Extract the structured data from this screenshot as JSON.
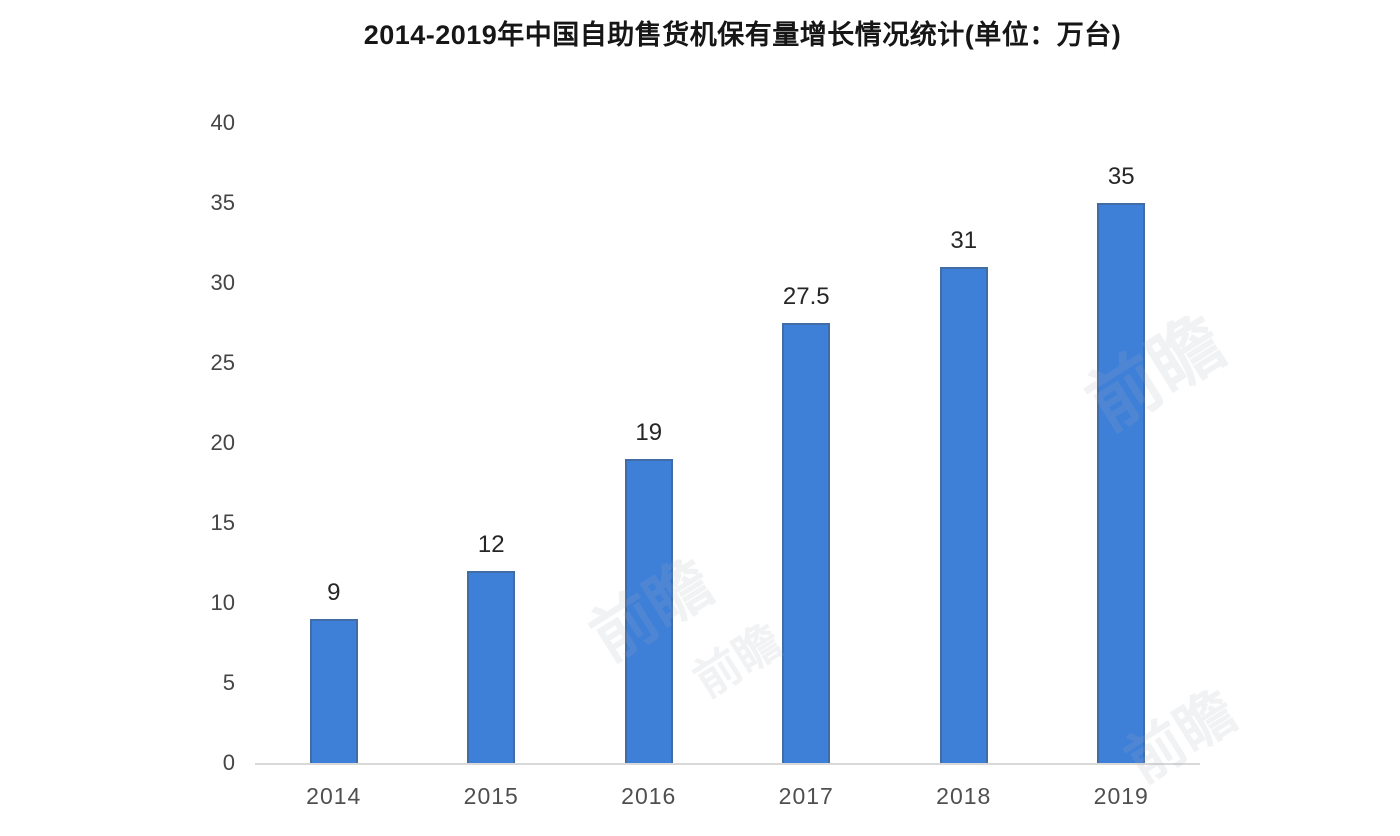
{
  "chart_data": {
    "type": "bar",
    "title": "2014-2019年中国自助售货机保有量增长情况统计(单位：万台)",
    "categories": [
      "2014",
      "2015",
      "2016",
      "2017",
      "2018",
      "2019"
    ],
    "values": [
      9,
      12,
      19,
      27.5,
      31,
      35
    ],
    "value_labels": [
      "9",
      "12",
      "19",
      "27.5",
      "31",
      "35"
    ],
    "xlabel": "",
    "ylabel": "",
    "ylim": [
      0,
      40
    ],
    "yticks": [
      0,
      5,
      10,
      15,
      20,
      25,
      30,
      35,
      40
    ],
    "grid": false,
    "legend": null,
    "bar_color": "#3e7fd8",
    "bar_edge_color": "#46617a",
    "axis_label_color": "#454545",
    "data_label_color": "#262626",
    "baseline_color": "#d8d8d8",
    "background_color": "#ffffff"
  },
  "watermark": {
    "text": "前瞻"
  }
}
